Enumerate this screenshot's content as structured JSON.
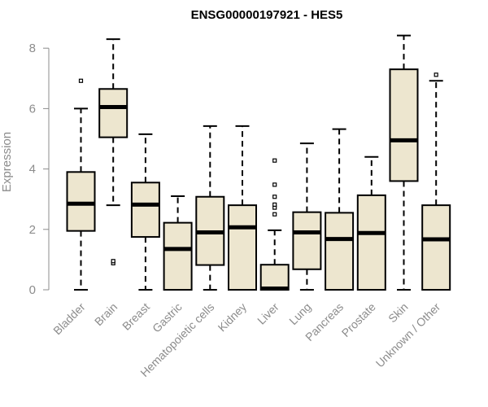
{
  "chart_data": {
    "type": "boxplot",
    "title": "ENSG00000197921 - HES5",
    "ylabel": "Expression",
    "xlabel": "",
    "ylim": [
      0,
      8.6
    ],
    "yticks": [
      0,
      2,
      4,
      6,
      8
    ],
    "box_fill": "#ede6cf",
    "box_stroke": "#000000",
    "categories": [
      "Bladder",
      "Brain",
      "Breast",
      "Gastric",
      "Hematopoietic cells",
      "Kidney",
      "Liver",
      "Lung",
      "Pancreas",
      "Prostate",
      "Skin",
      "Unknown / Other"
    ],
    "boxes": [
      {
        "category": "Bladder",
        "whisker_low": 0.0,
        "q1": 1.95,
        "median": 2.85,
        "q3": 3.9,
        "whisker_high": 6.0,
        "outliers": [
          6.92
        ]
      },
      {
        "category": "Brain",
        "whisker_low": 2.8,
        "q1": 5.05,
        "median": 6.05,
        "q3": 6.65,
        "whisker_high": 8.3,
        "outliers": [
          0.88,
          0.95
        ]
      },
      {
        "category": "Breast",
        "whisker_low": 0.0,
        "q1": 1.75,
        "median": 2.82,
        "q3": 3.55,
        "whisker_high": 5.15,
        "outliers": []
      },
      {
        "category": "Gastric",
        "whisker_low": 0.0,
        "q1": 0.0,
        "median": 1.35,
        "q3": 2.22,
        "whisker_high": 3.1,
        "outliers": []
      },
      {
        "category": "Hematopoietic cells",
        "whisker_low": 0.0,
        "q1": 0.82,
        "median": 1.9,
        "q3": 3.08,
        "whisker_high": 5.42,
        "outliers": []
      },
      {
        "category": "Kidney",
        "whisker_low": 0.0,
        "q1": 0.0,
        "median": 2.07,
        "q3": 2.8,
        "whisker_high": 5.42,
        "outliers": []
      },
      {
        "category": "Liver",
        "whisker_low": 0.0,
        "q1": 0.0,
        "median": 0.04,
        "q3": 0.83,
        "whisker_high": 1.97,
        "outliers": [
          2.5,
          2.72,
          2.82,
          3.08,
          3.48,
          4.28
        ]
      },
      {
        "category": "Lung",
        "whisker_low": 0.0,
        "q1": 0.68,
        "median": 1.9,
        "q3": 2.57,
        "whisker_high": 4.85,
        "outliers": []
      },
      {
        "category": "Pancreas",
        "whisker_low": 0.0,
        "q1": 0.0,
        "median": 1.68,
        "q3": 2.55,
        "whisker_high": 5.32,
        "outliers": []
      },
      {
        "category": "Prostate",
        "whisker_low": 0.0,
        "q1": 0.0,
        "median": 1.88,
        "q3": 3.13,
        "whisker_high": 4.4,
        "outliers": []
      },
      {
        "category": "Skin",
        "whisker_low": 0.0,
        "q1": 3.6,
        "median": 4.95,
        "q3": 7.3,
        "whisker_high": 8.42,
        "outliers": []
      },
      {
        "category": "Unknown / Other",
        "whisker_low": 0.0,
        "q1": 0.0,
        "median": 1.67,
        "q3": 2.8,
        "whisker_high": 6.92,
        "outliers": [
          7.12
        ]
      }
    ]
  }
}
